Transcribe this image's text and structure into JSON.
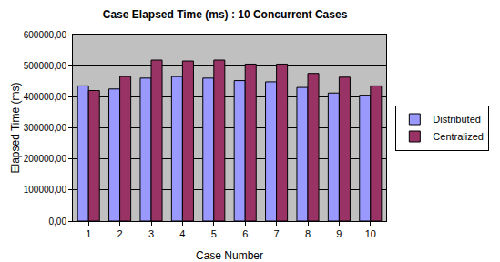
{
  "chart_data": {
    "type": "bar",
    "title": "Case Elapsed Time (ms) : 10 Concurrent Cases",
    "x_label": "Case Number",
    "y_label": "Elapsed Time (ms)",
    "categories": [
      "1",
      "2",
      "3",
      "4",
      "5",
      "6",
      "7",
      "8",
      "9",
      "10"
    ],
    "series": [
      {
        "name": "Distributed",
        "color": "#9999ff",
        "values": [
          435000,
          425000,
          460000,
          465000,
          460000,
          452000,
          448000,
          430000,
          412000,
          405000
        ]
      },
      {
        "name": "Centralized",
        "color": "#993366",
        "values": [
          420000,
          465000,
          518000,
          515000,
          518000,
          505000,
          505000,
          475000,
          463000,
          435000
        ]
      }
    ],
    "ylim": [
      0,
      600000
    ],
    "yticks": [
      {
        "value": 0,
        "label": "0,00"
      },
      {
        "value": 100000,
        "label": "100000,00"
      },
      {
        "value": 200000,
        "label": "200000,00"
      },
      {
        "value": 300000,
        "label": "300000,00"
      },
      {
        "value": 400000,
        "label": "400000,00"
      },
      {
        "value": 500000,
        "label": "500000,00"
      },
      {
        "value": 600000,
        "label": "600000,00"
      }
    ],
    "grid": true,
    "legend": "right"
  }
}
